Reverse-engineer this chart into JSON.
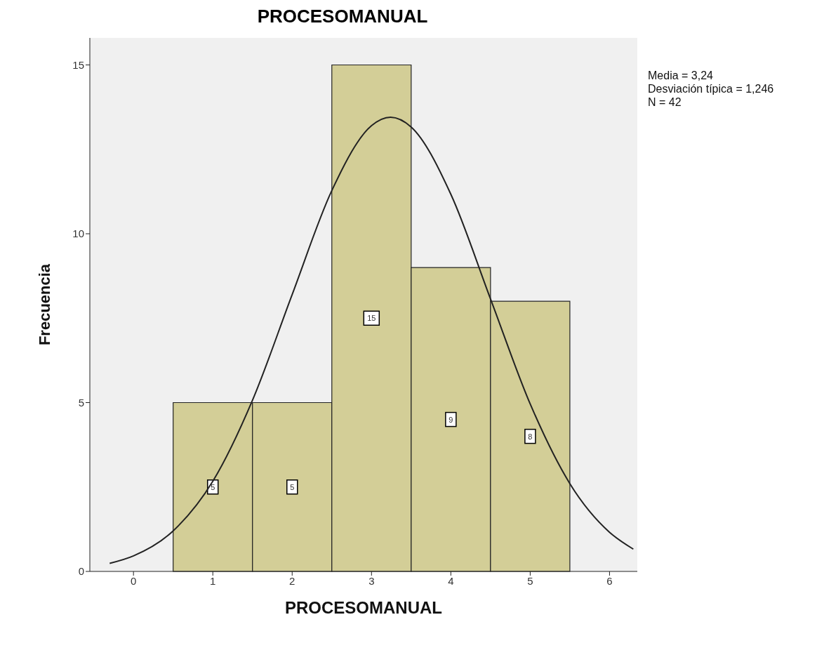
{
  "chart_data": {
    "type": "histogram",
    "title": "PROCESOMANUAL",
    "xlabel": "PROCESOMANUAL",
    "ylabel": "Frecuencia",
    "bins": [
      0.5,
      1.5,
      2.5,
      3.5,
      4.5,
      5.5
    ],
    "values": [
      5,
      5,
      15,
      9,
      8
    ],
    "color": "#d3ce97",
    "value_labels": [
      "5",
      "5",
      "15",
      "9",
      "8"
    ],
    "xlim": [
      -0.55,
      6.35
    ],
    "xticks": [
      0,
      1,
      2,
      3,
      4,
      5,
      6
    ],
    "ylim": [
      0,
      15.8
    ],
    "yticks": [
      0,
      5,
      10,
      15
    ],
    "grid": false,
    "series": [
      {
        "type": "line",
        "color": "#222222",
        "marker": "none",
        "x": [
          -0.3,
          0,
          0.5,
          1,
          1.5,
          2,
          2.5,
          3,
          3.24,
          3.5,
          4,
          4.5,
          5,
          5.5,
          6,
          6.3
        ],
        "values": [
          0.24,
          0.46,
          1.2,
          2.67,
          5.07,
          8.2,
          11.28,
          13.2,
          13.45,
          13.16,
          11.17,
          8.07,
          4.96,
          2.6,
          1.16,
          0.66
        ]
      }
    ],
    "annotations": [
      "Media = 3,24",
      "Desviación típica = 1,246",
      "N = 42"
    ]
  }
}
